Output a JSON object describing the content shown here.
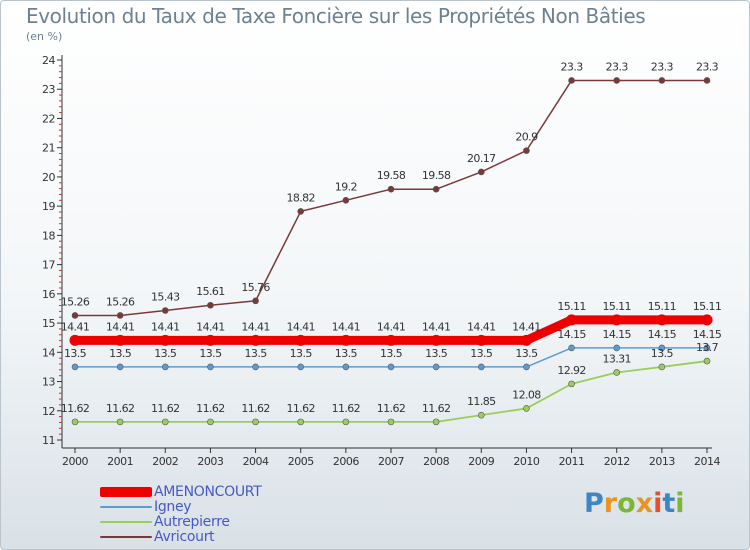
{
  "header": {
    "title": "Evolution du Taux de Taxe Foncière sur les Propriétés Non Bâties",
    "unit": "(en %)"
  },
  "logo": {
    "letters": [
      "P",
      "r",
      "o",
      "x",
      "i",
      "t",
      "i"
    ],
    "colors": [
      "#3d86c6",
      "#e8941e",
      "#7bb733",
      "#e8941e",
      "#e84e2c",
      "#3d86c6",
      "#7bb733"
    ]
  },
  "chart_data": {
    "type": "line",
    "title": "Evolution du Taux de Taxe Foncière sur les Propriétés Non Bâties",
    "ylabel": "(en %)",
    "x": [
      2000,
      2001,
      2002,
      2003,
      2004,
      2005,
      2006,
      2007,
      2008,
      2009,
      2010,
      2011,
      2012,
      2013,
      2014
    ],
    "ylim": [
      11,
      24
    ],
    "yticks": [
      11,
      12,
      13,
      14,
      15,
      16,
      17,
      18,
      19,
      20,
      21,
      22,
      23,
      24
    ],
    "grid": false,
    "legend_position": "bottom-left",
    "series": [
      {
        "name": "AMENONCOURT",
        "color": "#ee0000",
        "values": [
          14.41,
          14.41,
          14.41,
          14.41,
          14.41,
          14.41,
          14.41,
          14.41,
          14.41,
          14.41,
          14.41,
          15.11,
          15.11,
          15.11,
          15.11
        ],
        "labels": [
          "14.41",
          "14.41",
          "14.41",
          "14.41",
          "14.41",
          "14.41",
          "14.41",
          "14.41",
          "14.41",
          "14.41",
          "14.41",
          "15.11",
          "15.11",
          "15.11",
          "15.11"
        ]
      },
      {
        "name": "Igney",
        "color": "#5b9bd5",
        "values": [
          13.5,
          13.5,
          13.5,
          13.5,
          13.5,
          13.5,
          13.5,
          13.5,
          13.5,
          13.5,
          13.5,
          14.15,
          14.15,
          14.15,
          14.15
        ],
        "labels": [
          "13.5",
          "13.5",
          "13.5",
          "13.5",
          "13.5",
          "13.5",
          "13.5",
          "13.5",
          "13.5",
          "13.5",
          "13.5",
          "14.15",
          "14.15",
          "14.15",
          "14.15"
        ]
      },
      {
        "name": "Autrepierre",
        "color": "#9acd5a",
        "values": [
          11.62,
          11.62,
          11.62,
          11.62,
          11.62,
          11.62,
          11.62,
          11.62,
          11.62,
          11.85,
          12.08,
          12.92,
          13.31,
          13.5,
          13.7
        ],
        "labels": [
          "11.62",
          "11.62",
          "11.62",
          "11.62",
          "11.62",
          "11.62",
          "11.62",
          "11.62",
          "11.62",
          "11.85",
          "12.08",
          "12.92",
          "13.31",
          "13.5",
          "13.7"
        ]
      },
      {
        "name": "Avricourt",
        "color": "#7a3939",
        "values": [
          15.26,
          15.26,
          15.43,
          15.61,
          15.76,
          18.82,
          19.2,
          19.58,
          19.58,
          20.17,
          20.9,
          23.3,
          23.3,
          23.3,
          23.3
        ],
        "labels": [
          "15.26",
          "15.26",
          "15.43",
          "15.61",
          "15.76",
          "18.82",
          "19.2",
          "19.58",
          "19.58",
          "20.17",
          "20.9",
          "23.3",
          "23.3",
          "23.3",
          "23.3"
        ]
      }
    ]
  }
}
